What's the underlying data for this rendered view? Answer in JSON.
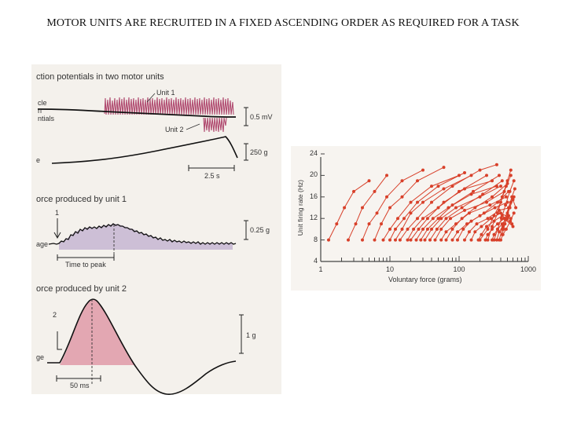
{
  "slide": {
    "title": "MOTOR UNITS ARE RECRUITED IN A FIXED ASCENDING ORDER AS REQUIRED FOR A TASK"
  },
  "left_figure": {
    "heading_a": "ction potentials in two motor units",
    "side_a": [
      "cle",
      "n",
      "ntials"
    ],
    "unit1": "Unit 1",
    "unit2": "Unit 2",
    "scale_mv": "0.5 mV",
    "side_force": "e",
    "scale_g1": "250 g",
    "scale_time": "2.5 s",
    "heading_b": "orce produced by unit 1",
    "marker1": "1",
    "side_b": "age",
    "scale_g2": "0.25 g",
    "time_to_peak": "Time to peak",
    "heading_c": "orce produced by unit 2",
    "marker2": "2",
    "side_c": "ge",
    "scale_g3": "1 g",
    "scale_ms": "50 ms"
  },
  "chart_data": {
    "type": "line",
    "xlabel": "Voluntary force (grams)",
    "ylabel": "Unit firing rate (Hz)",
    "x_scale": "log",
    "xlim": [
      1,
      1000
    ],
    "ylim": [
      4,
      24
    ],
    "x_ticks": [
      "1",
      "10",
      "100",
      "1000"
    ],
    "y_ticks": [
      "4",
      "8",
      "12",
      "16",
      "20",
      "24"
    ],
    "color": "#d8402a",
    "series": [
      {
        "values": [
          [
            1.3,
            8
          ],
          [
            1.7,
            11
          ],
          [
            2.2,
            14
          ],
          [
            3,
            17
          ],
          [
            5,
            19
          ]
        ]
      },
      {
        "values": [
          [
            2.5,
            8
          ],
          [
            3.2,
            11
          ],
          [
            4,
            14
          ],
          [
            6,
            17
          ],
          [
            9,
            20
          ]
        ]
      },
      {
        "values": [
          [
            4,
            8
          ],
          [
            5,
            11
          ],
          [
            6.5,
            13
          ],
          [
            9,
            16
          ],
          [
            15,
            19
          ],
          [
            30,
            21
          ]
        ]
      },
      {
        "values": [
          [
            6,
            8
          ],
          [
            7.5,
            11
          ],
          [
            10,
            14
          ],
          [
            15,
            16
          ],
          [
            25,
            19
          ],
          [
            60,
            21.5
          ]
        ]
      },
      {
        "values": [
          [
            8,
            8
          ],
          [
            10,
            10
          ],
          [
            13,
            12
          ],
          [
            20,
            15
          ],
          [
            40,
            18
          ],
          [
            100,
            20
          ]
        ]
      },
      {
        "values": [
          [
            10,
            8
          ],
          [
            12,
            10
          ],
          [
            16,
            12
          ],
          [
            25,
            15
          ],
          [
            50,
            18
          ],
          [
            120,
            20.5
          ]
        ]
      },
      {
        "values": [
          [
            12,
            8
          ],
          [
            15,
            10
          ],
          [
            20,
            13
          ],
          [
            30,
            15
          ],
          [
            60,
            17.5
          ],
          [
            150,
            20
          ]
        ]
      },
      {
        "values": [
          [
            14,
            8
          ],
          [
            18,
            10
          ],
          [
            25,
            12
          ],
          [
            40,
            15
          ],
          [
            80,
            18
          ],
          [
            200,
            21
          ],
          [
            350,
            22
          ]
        ]
      },
      {
        "values": [
          [
            18,
            8
          ],
          [
            22,
            10
          ],
          [
            30,
            12
          ],
          [
            50,
            14
          ],
          [
            100,
            17
          ],
          [
            250,
            20
          ]
        ]
      },
      {
        "values": [
          [
            20,
            8
          ],
          [
            26,
            10
          ],
          [
            35,
            12
          ],
          [
            60,
            15
          ],
          [
            120,
            17.5
          ],
          [
            300,
            19
          ]
        ]
      },
      {
        "values": [
          [
            24,
            8
          ],
          [
            30,
            10
          ],
          [
            42,
            12
          ],
          [
            70,
            14
          ],
          [
            150,
            16.5
          ],
          [
            350,
            18
          ]
        ]
      },
      {
        "values": [
          [
            28,
            8
          ],
          [
            35,
            10
          ],
          [
            50,
            12
          ],
          [
            80,
            14.5
          ],
          [
            160,
            17
          ],
          [
            380,
            20
          ]
        ]
      },
      {
        "values": [
          [
            32,
            8
          ],
          [
            40,
            10
          ],
          [
            55,
            12
          ],
          [
            90,
            14
          ],
          [
            200,
            16
          ],
          [
            400,
            18
          ]
        ]
      },
      {
        "values": [
          [
            38,
            8
          ],
          [
            48,
            10
          ],
          [
            65,
            12
          ],
          [
            110,
            14
          ],
          [
            220,
            16.5
          ],
          [
            420,
            19
          ]
        ]
      },
      {
        "values": [
          [
            45,
            8
          ],
          [
            55,
            10
          ],
          [
            75,
            12
          ],
          [
            120,
            13.5
          ],
          [
            250,
            15
          ],
          [
            450,
            17
          ]
        ]
      },
      {
        "values": [
          [
            55,
            8
          ],
          [
            65,
            9.5
          ],
          [
            90,
            11
          ],
          [
            140,
            13
          ],
          [
            280,
            14.5
          ],
          [
            480,
            16
          ]
        ]
      },
      {
        "values": [
          [
            65,
            8
          ],
          [
            80,
            10
          ],
          [
            110,
            12
          ],
          [
            170,
            14
          ],
          [
            300,
            16
          ],
          [
            500,
            18.5
          ]
        ]
      },
      {
        "values": [
          [
            80,
            8
          ],
          [
            95,
            9.5
          ],
          [
            130,
            11
          ],
          [
            200,
            12.5
          ],
          [
            330,
            14
          ],
          [
            500,
            15
          ]
        ]
      },
      {
        "values": [
          [
            95,
            8
          ],
          [
            115,
            10
          ],
          [
            150,
            11.5
          ],
          [
            230,
            13
          ],
          [
            360,
            15
          ],
          [
            520,
            17
          ]
        ]
      },
      {
        "values": [
          [
            120,
            8
          ],
          [
            140,
            9.5
          ],
          [
            180,
            11
          ],
          [
            260,
            12
          ],
          [
            380,
            13.5
          ],
          [
            540,
            14
          ]
        ]
      },
      {
        "values": [
          [
            150,
            8
          ],
          [
            170,
            9.5
          ],
          [
            210,
            10.5
          ],
          [
            290,
            12
          ],
          [
            400,
            13
          ],
          [
            560,
            12
          ]
        ]
      },
      {
        "values": [
          [
            190,
            8
          ],
          [
            210,
            9
          ],
          [
            250,
            10.5
          ],
          [
            320,
            11.5
          ],
          [
            420,
            12.5
          ],
          [
            580,
            11
          ]
        ]
      },
      {
        "values": [
          [
            240,
            8
          ],
          [
            260,
            9
          ],
          [
            300,
            10
          ],
          [
            360,
            11
          ],
          [
            450,
            12
          ],
          [
            600,
            10.5
          ]
        ]
      },
      {
        "values": [
          [
            300,
            8
          ],
          [
            320,
            9
          ],
          [
            360,
            10
          ],
          [
            420,
            11
          ],
          [
            520,
            12.5
          ]
        ]
      },
      {
        "values": [
          [
            350,
            8
          ],
          [
            380,
            9.5
          ],
          [
            430,
            10.5
          ],
          [
            500,
            12
          ]
        ]
      },
      {
        "values": [
          [
            400,
            8
          ],
          [
            430,
            9
          ],
          [
            480,
            10
          ],
          [
            550,
            11.5
          ],
          [
            620,
            13
          ]
        ]
      },
      {
        "values": [
          [
            200,
            8
          ],
          [
            260,
            10
          ],
          [
            320,
            12.5
          ],
          [
            400,
            15
          ],
          [
            480,
            18
          ],
          [
            560,
            20
          ]
        ]
      },
      {
        "values": [
          [
            260,
            8
          ],
          [
            300,
            10.5
          ],
          [
            360,
            13
          ],
          [
            420,
            16
          ],
          [
            500,
            19
          ],
          [
            560,
            21
          ]
        ]
      },
      {
        "values": [
          [
            320,
            8
          ],
          [
            360,
            10
          ],
          [
            410,
            12
          ],
          [
            470,
            14.5
          ],
          [
            540,
            17
          ],
          [
            620,
            19
          ]
        ]
      },
      {
        "values": [
          [
            380,
            8
          ],
          [
            420,
            10
          ],
          [
            460,
            12
          ],
          [
            520,
            14
          ],
          [
            580,
            16
          ],
          [
            640,
            17.5
          ]
        ]
      },
      {
        "values": [
          [
            420,
            9
          ],
          [
            460,
            11
          ],
          [
            500,
            13
          ],
          [
            560,
            15
          ],
          [
            620,
            16
          ]
        ]
      },
      {
        "values": [
          [
            440,
            10
          ],
          [
            480,
            12
          ],
          [
            540,
            14
          ],
          [
            600,
            15.5
          ],
          [
            660,
            14
          ]
        ]
      }
    ]
  }
}
